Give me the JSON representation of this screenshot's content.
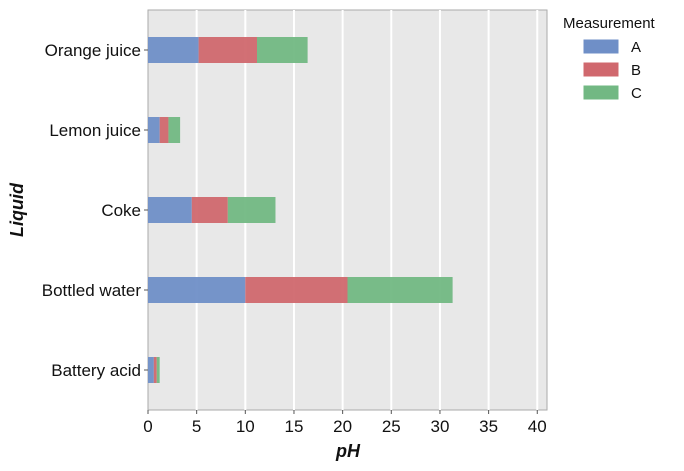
{
  "chart_data": {
    "type": "bar",
    "orientation": "horizontal",
    "stacked": true,
    "categories": [
      "Battery acid",
      "Bottled water",
      "Coke",
      "Lemon juice",
      "Orange juice"
    ],
    "series": [
      {
        "name": "A",
        "color": "#6f8fc7",
        "values": [
          0.6,
          10.0,
          4.5,
          1.2,
          5.2
        ]
      },
      {
        "name": "B",
        "color": "#d0686e",
        "values": [
          0.3,
          10.5,
          3.7,
          0.9,
          6.0
        ]
      },
      {
        "name": "C",
        "color": "#72b883",
        "values": [
          0.3,
          10.8,
          4.9,
          1.2,
          5.2
        ]
      }
    ],
    "xlabel": "pH",
    "ylabel": "Liquid",
    "xlim": [
      0,
      41
    ],
    "xticks": [
      0,
      5,
      10,
      15,
      20,
      25,
      30,
      35,
      40
    ],
    "legend_title": "Measurement",
    "legend_position": "outside-top-right",
    "grid": true,
    "background": "#e8e8e8"
  }
}
